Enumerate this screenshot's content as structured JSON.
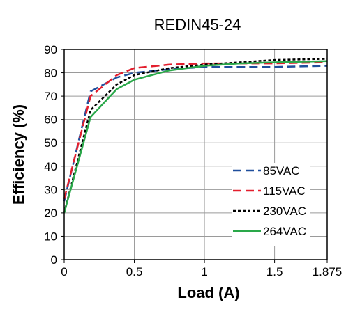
{
  "chart_data": {
    "type": "line",
    "title": "REDIN45-24",
    "xlabel": "Load (A)",
    "ylabel": "Efficiency (%)",
    "xlim": [
      0,
      1.875
    ],
    "ylim": [
      0,
      90
    ],
    "x_ticks": [
      0,
      0.5,
      1,
      1.5,
      1.875
    ],
    "x_tick_labels": [
      "0",
      "0.5",
      "1",
      "1.5",
      "1.875"
    ],
    "y_ticks": [
      0,
      10,
      20,
      30,
      40,
      50,
      60,
      70,
      80,
      90
    ],
    "y_tick_labels": [
      "0",
      "10",
      "20",
      "30",
      "40",
      "50",
      "60",
      "70",
      "80",
      "90"
    ],
    "grid": true,
    "legend_position": "bottom-right",
    "series": [
      {
        "name": "85VAC",
        "color": "#1f4e9c",
        "dash": "long-dash",
        "x": [
          0,
          0.188,
          0.375,
          0.5,
          0.75,
          1.0,
          1.25,
          1.5,
          1.875
        ],
        "y": [
          25,
          72,
          78,
          80,
          81.5,
          82.5,
          82.5,
          82.5,
          83
        ]
      },
      {
        "name": "115VAC",
        "color": "#e31e2d",
        "dash": "long-dash",
        "x": [
          0,
          0.188,
          0.375,
          0.5,
          0.75,
          1.0,
          1.25,
          1.5,
          1.875
        ],
        "y": [
          26,
          70,
          79,
          82,
          83.5,
          84,
          84,
          84,
          84.5
        ]
      },
      {
        "name": "230VAC",
        "color": "#000000",
        "dash": "dotted",
        "x": [
          0,
          0.188,
          0.375,
          0.5,
          0.75,
          1.0,
          1.25,
          1.5,
          1.875
        ],
        "y": [
          20,
          64,
          75,
          79,
          82,
          83.5,
          84.5,
          85.5,
          86
        ]
      },
      {
        "name": "264VAC",
        "color": "#2aa84a",
        "dash": "solid",
        "x": [
          0,
          0.188,
          0.375,
          0.5,
          0.75,
          1.0,
          1.25,
          1.5,
          1.875
        ],
        "y": [
          20,
          61,
          73,
          77,
          81,
          83,
          84,
          84.5,
          85
        ]
      }
    ]
  }
}
